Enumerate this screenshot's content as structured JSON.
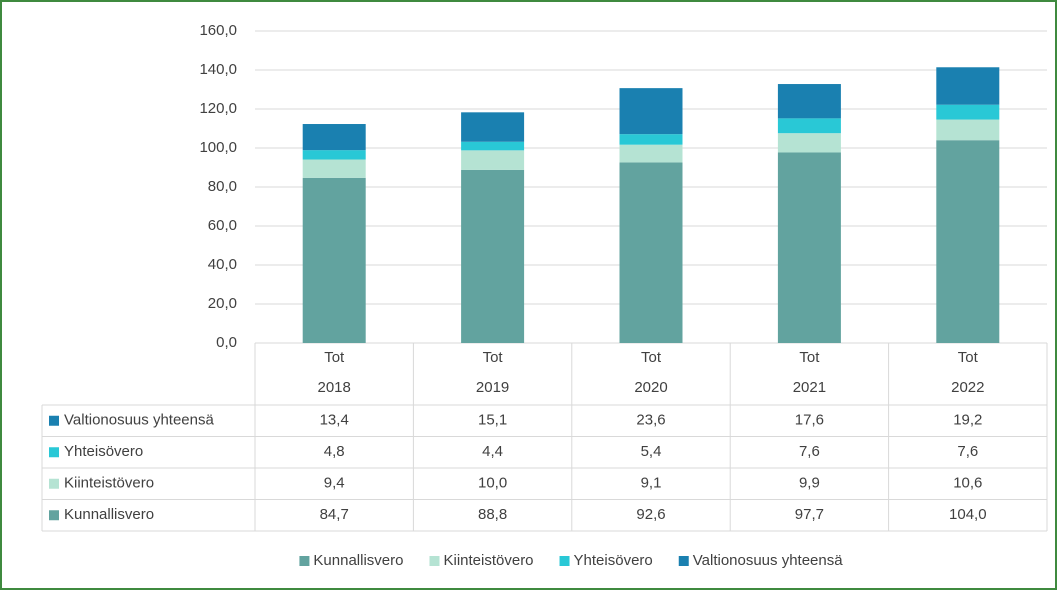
{
  "chart_data": {
    "type": "stacked_bar",
    "categories": [
      [
        "Tot",
        "2018"
      ],
      [
        "Tot",
        "2019"
      ],
      [
        "Tot",
        "2020"
      ],
      [
        "Tot",
        "2021"
      ],
      [
        "Tot",
        "2022"
      ]
    ],
    "series": [
      {
        "name": "Kunnallisvero",
        "color": "#62a39f",
        "values": [
          84.7,
          88.8,
          92.6,
          97.7,
          104.0
        ],
        "value_labels": [
          "84,7",
          "88,8",
          "92,6",
          "97,7",
          "104,0"
        ]
      },
      {
        "name": "Kiinteistövero",
        "color": "#b5e3d3",
        "values": [
          9.4,
          10.0,
          9.1,
          9.9,
          10.6
        ],
        "value_labels": [
          "9,4",
          "10,0",
          "9,1",
          "9,9",
          "10,6"
        ]
      },
      {
        "name": "Yhteisövero",
        "color": "#29c8d6",
        "values": [
          4.8,
          4.4,
          5.4,
          7.6,
          7.6
        ],
        "value_labels": [
          "4,8",
          "4,4",
          "5,4",
          "7,6",
          "7,6"
        ]
      },
      {
        "name": "Valtionosuus yhteensä",
        "color": "#1a80b0",
        "values": [
          13.4,
          15.1,
          23.6,
          17.6,
          19.2
        ],
        "value_labels": [
          "13,4",
          "15,1",
          "23,6",
          "17,6",
          "19,2"
        ]
      }
    ],
    "ylim": [
      0,
      160
    ],
    "yticks": [
      {
        "value": 0,
        "label": "0,0"
      },
      {
        "value": 20,
        "label": "20,0"
      },
      {
        "value": 40,
        "label": "40,0"
      },
      {
        "value": 60,
        "label": "60,0"
      },
      {
        "value": 80,
        "label": "80,0"
      },
      {
        "value": 100,
        "label": "100,0"
      },
      {
        "value": 120,
        "label": "120,0"
      },
      {
        "value": 140,
        "label": "140,0"
      },
      {
        "value": 160,
        "label": "160,0"
      }
    ],
    "grid": true,
    "data_table": true,
    "legend": "bottom"
  }
}
